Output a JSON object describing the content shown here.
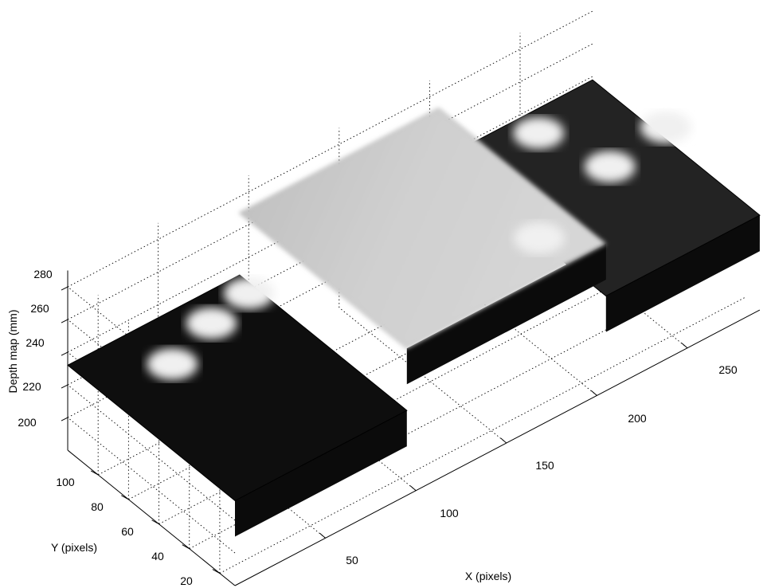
{
  "chart_data": {
    "type": "surface",
    "title": "",
    "xlabel": "X (pixels)",
    "ylabel": "Y (pixels)",
    "zlabel": "Depth map (mm)",
    "xlim": [
      0,
      290
    ],
    "ylim": [
      10,
      120
    ],
    "zlim": [
      180,
      290
    ],
    "x_ticks": [
      50,
      100,
      150,
      200,
      250
    ],
    "y_ticks": [
      20,
      40,
      60,
      80,
      100
    ],
    "z_ticks": [
      200,
      220,
      240,
      260,
      280
    ],
    "x_tick_labels": [
      "50",
      "100",
      "150",
      "200",
      "250"
    ],
    "y_tick_labels": [
      "20",
      "40",
      "60",
      "80",
      "100"
    ],
    "z_tick_labels": [
      "200",
      "220",
      "240",
      "260",
      "280"
    ],
    "grid": true,
    "colormap": "gray",
    "colors": {
      "low": "#0c0c0c",
      "high": "#e0e0e0",
      "bright_spot": "#f0f0f0"
    },
    "surface_regions": [
      {
        "name": "left dark slab",
        "x_range": [
          0,
          95
        ],
        "y_range": [
          10,
          120
        ],
        "depth": 232
      },
      {
        "name": "central raised block",
        "x_range": [
          95,
          205
        ],
        "y_range": [
          10,
          120
        ],
        "depth": 270
      },
      {
        "name": "right dark slab",
        "x_range": [
          205,
          290
        ],
        "y_range": [
          10,
          120
        ],
        "depth": 238
      }
    ],
    "bright_spots": [
      {
        "x": 20,
        "y": 75,
        "depth": 255
      },
      {
        "x": 50,
        "y": 85,
        "depth": 255
      },
      {
        "x": 75,
        "y": 90,
        "depth": 255
      },
      {
        "x": 185,
        "y": 30,
        "depth": 270
      },
      {
        "x": 235,
        "y": 90,
        "depth": 260
      },
      {
        "x": 245,
        "y": 55,
        "depth": 260
      },
      {
        "x": 280,
        "y": 60,
        "depth": 260
      }
    ]
  }
}
